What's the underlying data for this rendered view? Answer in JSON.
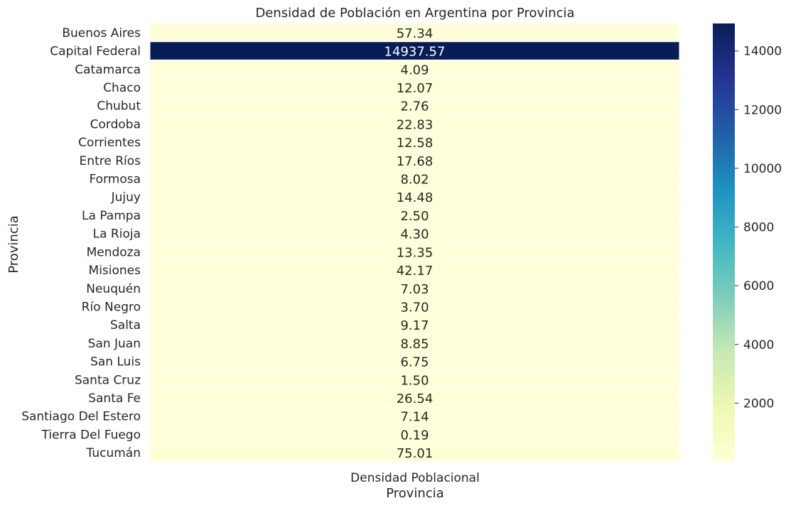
{
  "chart_data": {
    "type": "heatmap",
    "title": "Densidad de Población en Argentina por Provincia",
    "xlabel": "Provincia",
    "ylabel": "Provincia",
    "x_categories": [
      "Densidad Poblacional"
    ],
    "y_categories": [
      "Buenos Aires",
      "Capital Federal",
      "Catamarca",
      "Chaco",
      "Chubut",
      "Cordoba",
      "Corrientes",
      "Entre Ríos",
      "Formosa",
      "Jujuy",
      "La Pampa",
      "La Rioja",
      "Mendoza",
      "Misiones",
      "Neuquén",
      "Río Negro",
      "Salta",
      "San Juan",
      "San Luis",
      "Santa Cruz",
      "Santa Fe",
      "Santiago Del Estero",
      "Tierra Del Fuego",
      "Tucumán"
    ],
    "values": [
      57.34,
      14937.57,
      4.09,
      12.07,
      2.76,
      22.83,
      12.58,
      17.68,
      8.02,
      14.48,
      2.5,
      4.3,
      13.35,
      42.17,
      7.03,
      3.7,
      9.17,
      8.85,
      6.75,
      1.5,
      26.54,
      7.14,
      0.19,
      75.01
    ],
    "value_labels": [
      "57.34",
      "14937.57",
      "4.09",
      "12.07",
      "2.76",
      "22.83",
      "12.58",
      "17.68",
      "8.02",
      "14.48",
      "2.50",
      "4.30",
      "13.35",
      "42.17",
      "7.03",
      "3.70",
      "9.17",
      "8.85",
      "6.75",
      "1.50",
      "26.54",
      "7.14",
      "0.19",
      "75.01"
    ],
    "colormap": "YlGnBu",
    "colorbar": {
      "range": [
        0.19,
        14937.57
      ],
      "ticks": [
        2000,
        4000,
        6000,
        8000,
        10000,
        12000,
        14000
      ],
      "tick_labels": [
        "2000",
        "4000",
        "6000",
        "8000",
        "10000",
        "12000",
        "14000"
      ]
    }
  }
}
